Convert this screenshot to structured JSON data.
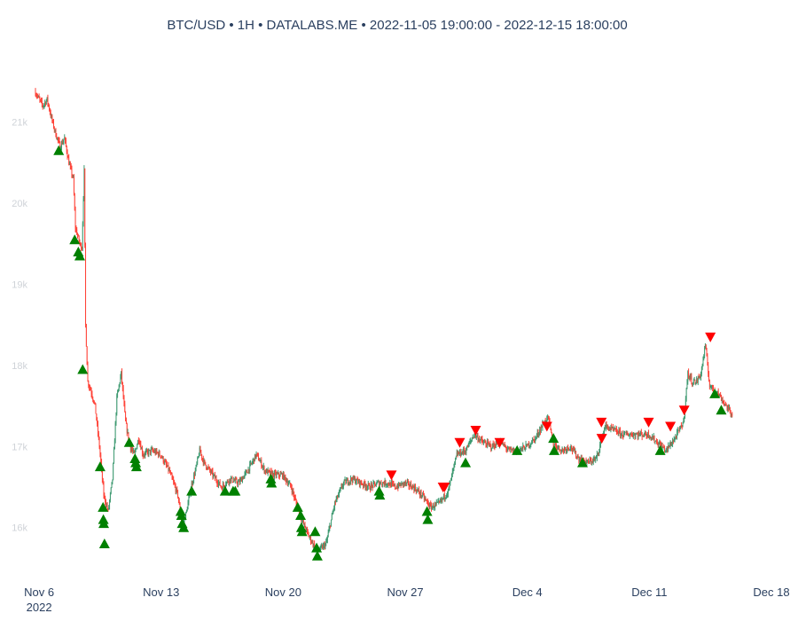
{
  "chart_data": {
    "type": "candlestick",
    "title": "BTC/USD • 1H • DATALABS.ME • 2022-11-05 19:00:00 - 2022-12-15 18:00:00",
    "xlabel": "",
    "ylabel": "",
    "xlim": [
      "2022-11-05 19:00:00",
      "2022-12-18 00:00:00"
    ],
    "ylim": [
      15450,
      21850
    ],
    "grid": false,
    "legend": "none",
    "x_ticks": [
      {
        "date": "2022-11-06",
        "label": "Nov 6",
        "sublabel": "2022"
      },
      {
        "date": "2022-11-13",
        "label": "Nov 13",
        "sublabel": ""
      },
      {
        "date": "2022-11-20",
        "label": "Nov 20",
        "sublabel": ""
      },
      {
        "date": "2022-11-27",
        "label": "Nov 27",
        "sublabel": ""
      },
      {
        "date": "2022-12-04",
        "label": "Dec 4",
        "sublabel": ""
      },
      {
        "date": "2022-12-11",
        "label": "Dec 11",
        "sublabel": ""
      },
      {
        "date": "2022-12-18",
        "label": "Dec 18",
        "sublabel": ""
      }
    ],
    "y_ticks": [
      {
        "value": 16000,
        "label": "16k"
      },
      {
        "value": 17000,
        "label": "17k"
      },
      {
        "value": 18000,
        "label": "18k"
      },
      {
        "value": 19000,
        "label": "19k"
      },
      {
        "value": 20000,
        "label": "20k"
      },
      {
        "value": 21000,
        "label": "21k"
      }
    ],
    "colors": {
      "up": "#3d9970",
      "down": "#ff4136",
      "buy_marker": "#008000",
      "sell_marker": "#ff0000"
    },
    "price_path": [
      [
        "2022-11-05 19:00",
        21380
      ],
      [
        "2022-11-06 00:00",
        21300
      ],
      [
        "2022-11-06 06:00",
        21200
      ],
      [
        "2022-11-06 12:00",
        21280
      ],
      [
        "2022-11-06 18:00",
        21050
      ],
      [
        "2022-11-07 00:00",
        20850
      ],
      [
        "2022-11-07 06:00",
        20700
      ],
      [
        "2022-11-07 12:00",
        20800
      ],
      [
        "2022-11-07 18:00",
        20500
      ],
      [
        "2022-11-08 00:00",
        20300
      ],
      [
        "2022-11-08 03:00",
        19700
      ],
      [
        "2022-11-08 06:00",
        19600
      ],
      [
        "2022-11-08 09:00",
        19500
      ],
      [
        "2022-11-08 12:00",
        19450
      ],
      [
        "2022-11-08 15:00",
        20400
      ],
      [
        "2022-11-08 17:00",
        18500
      ],
      [
        "2022-11-08 20:00",
        17800
      ],
      [
        "2022-11-09 00:00",
        17700
      ],
      [
        "2022-11-09 06:00",
        17500
      ],
      [
        "2022-11-09 12:00",
        17000
      ],
      [
        "2022-11-09 18:00",
        16400
      ],
      [
        "2022-11-10 00:00",
        16200
      ],
      [
        "2022-11-10 06:00",
        16600
      ],
      [
        "2022-11-10 12:00",
        17600
      ],
      [
        "2022-11-10 18:00",
        17900
      ],
      [
        "2022-11-11 00:00",
        17300
      ],
      [
        "2022-11-11 06:00",
        17000
      ],
      [
        "2022-11-11 12:00",
        16900
      ],
      [
        "2022-11-11 18:00",
        17100
      ],
      [
        "2022-11-12 00:00",
        16900
      ],
      [
        "2022-11-12 12:00",
        16950
      ],
      [
        "2022-11-13 00:00",
        16900
      ],
      [
        "2022-11-13 12:00",
        16700
      ],
      [
        "2022-11-14 00:00",
        16400
      ],
      [
        "2022-11-14 06:00",
        16000
      ],
      [
        "2022-11-14 12:00",
        16200
      ],
      [
        "2022-11-14 18:00",
        16500
      ],
      [
        "2022-11-15 00:00",
        16700
      ],
      [
        "2022-11-15 06:00",
        16950
      ],
      [
        "2022-11-15 12:00",
        16800
      ],
      [
        "2022-11-16 00:00",
        16650
      ],
      [
        "2022-11-16 12:00",
        16500
      ],
      [
        "2022-11-17 00:00",
        16600
      ],
      [
        "2022-11-17 12:00",
        16550
      ],
      [
        "2022-11-18 00:00",
        16700
      ],
      [
        "2022-11-18 12:00",
        16900
      ],
      [
        "2022-11-19 00:00",
        16700
      ],
      [
        "2022-11-19 12:00",
        16650
      ],
      [
        "2022-11-20 00:00",
        16650
      ],
      [
        "2022-11-20 12:00",
        16500
      ],
      [
        "2022-11-21 00:00",
        16150
      ],
      [
        "2022-11-21 12:00",
        15900
      ],
      [
        "2022-11-22 00:00",
        15700
      ],
      [
        "2022-11-22 12:00",
        15800
      ],
      [
        "2022-11-23 00:00",
        16300
      ],
      [
        "2022-11-23 12:00",
        16550
      ],
      [
        "2022-11-24 00:00",
        16600
      ],
      [
        "2022-11-24 12:00",
        16550
      ],
      [
        "2022-11-25 00:00",
        16500
      ],
      [
        "2022-11-25 12:00",
        16550
      ],
      [
        "2022-11-26 00:00",
        16550
      ],
      [
        "2022-11-26 12:00",
        16500
      ],
      [
        "2022-11-27 00:00",
        16550
      ],
      [
        "2022-11-27 12:00",
        16500
      ],
      [
        "2022-11-28 00:00",
        16400
      ],
      [
        "2022-11-28 12:00",
        16250
      ],
      [
        "2022-11-29 00:00",
        16300
      ],
      [
        "2022-11-29 12:00",
        16450
      ],
      [
        "2022-11-30 00:00",
        16900
      ],
      [
        "2022-11-30 12:00",
        16950
      ],
      [
        "2022-12-01 00:00",
        17150
      ],
      [
        "2022-12-01 12:00",
        17050
      ],
      [
        "2022-12-02 00:00",
        17000
      ],
      [
        "2022-12-02 12:00",
        17050
      ],
      [
        "2022-12-03 00:00",
        16950
      ],
      [
        "2022-12-03 12:00",
        16950
      ],
      [
        "2022-12-04 00:00",
        17000
      ],
      [
        "2022-12-04 12:00",
        17100
      ],
      [
        "2022-12-05 00:00",
        17300
      ],
      [
        "2022-12-05 06:00",
        17350
      ],
      [
        "2022-12-05 12:00",
        17050
      ],
      [
        "2022-12-06 00:00",
        16950
      ],
      [
        "2022-12-06 12:00",
        17000
      ],
      [
        "2022-12-07 00:00",
        16850
      ],
      [
        "2022-12-07 12:00",
        16800
      ],
      [
        "2022-12-08 00:00",
        16850
      ],
      [
        "2022-12-08 12:00",
        17250
      ],
      [
        "2022-12-09 00:00",
        17200
      ],
      [
        "2022-12-09 12:00",
        17150
      ],
      [
        "2022-12-10 00:00",
        17150
      ],
      [
        "2022-12-10 12:00",
        17150
      ],
      [
        "2022-12-11 00:00",
        17150
      ],
      [
        "2022-12-11 12:00",
        17050
      ],
      [
        "2022-12-12 00:00",
        16950
      ],
      [
        "2022-12-12 12:00",
        17100
      ],
      [
        "2022-12-13 00:00",
        17300
      ],
      [
        "2022-12-13 06:00",
        17900
      ],
      [
        "2022-12-13 12:00",
        17800
      ],
      [
        "2022-12-13 18:00",
        17800
      ],
      [
        "2022-12-14 00:00",
        17900
      ],
      [
        "2022-12-14 06:00",
        18250
      ],
      [
        "2022-12-14 12:00",
        17750
      ],
      [
        "2022-12-14 18:00",
        17700
      ],
      [
        "2022-12-15 00:00",
        17650
      ],
      [
        "2022-12-15 18:00",
        17400
      ]
    ],
    "buy_signals": [
      [
        "2022-11-07 03:00",
        20650
      ],
      [
        "2022-11-08 01:00",
        19550
      ],
      [
        "2022-11-08 06:00",
        19400
      ],
      [
        "2022-11-08 08:00",
        19350
      ],
      [
        "2022-11-08 12:00",
        17950
      ],
      [
        "2022-11-09 12:00",
        16750
      ],
      [
        "2022-11-09 16:00",
        16250
      ],
      [
        "2022-11-09 16:30",
        16100
      ],
      [
        "2022-11-09 17:00",
        16050
      ],
      [
        "2022-11-09 18:00",
        15800
      ],
      [
        "2022-11-11 04:00",
        17050
      ],
      [
        "2022-11-11 12:00",
        16850
      ],
      [
        "2022-11-11 13:00",
        16800
      ],
      [
        "2022-11-11 14:00",
        16750
      ],
      [
        "2022-11-14 03:00",
        16200
      ],
      [
        "2022-11-14 04:00",
        16150
      ],
      [
        "2022-11-14 05:00",
        16050
      ],
      [
        "2022-11-14 07:00",
        16000
      ],
      [
        "2022-11-14 18:00",
        16450
      ],
      [
        "2022-11-16 16:00",
        16450
      ],
      [
        "2022-11-17 03:00",
        16450
      ],
      [
        "2022-11-17 06:00",
        16450
      ],
      [
        "2022-11-19 07:00",
        16600
      ],
      [
        "2022-11-19 08:00",
        16550
      ],
      [
        "2022-11-20 20:00",
        16250
      ],
      [
        "2022-11-21 00:00",
        16150
      ],
      [
        "2022-11-21 01:00",
        16000
      ],
      [
        "2022-11-21 02:00",
        15950
      ],
      [
        "2022-11-21 20:00",
        15950
      ],
      [
        "2022-11-21 22:00",
        15750
      ],
      [
        "2022-11-21 23:00",
        15650
      ],
      [
        "2022-11-25 12:00",
        16450
      ],
      [
        "2022-11-25 13:00",
        16400
      ],
      [
        "2022-11-28 06:00",
        16200
      ],
      [
        "2022-11-28 07:00",
        16100
      ],
      [
        "2022-11-30 11:00",
        16800
      ],
      [
        "2022-12-03 10:00",
        16950
      ],
      [
        "2022-12-05 12:00",
        17100
      ],
      [
        "2022-12-05 13:00",
        16950
      ],
      [
        "2022-12-07 04:00",
        16800
      ],
      [
        "2022-12-11 15:00",
        16950
      ],
      [
        "2022-12-14 18:00",
        17650
      ],
      [
        "2022-12-15 03:00",
        17450
      ]
    ],
    "sell_signals": [
      [
        "2022-11-26 05:00",
        16650
      ],
      [
        "2022-11-29 04:00",
        16500
      ],
      [
        "2022-11-29 06:00",
        16500
      ],
      [
        "2022-11-30 03:00",
        17050
      ],
      [
        "2022-12-01 01:00",
        17200
      ],
      [
        "2022-12-02 10:00",
        17050
      ],
      [
        "2022-12-05 03:00",
        17250
      ],
      [
        "2022-12-08 06:00",
        17300
      ],
      [
        "2022-12-08 06:30",
        17100
      ],
      [
        "2022-12-10 23:00",
        17300
      ],
      [
        "2022-12-12 05:00",
        17250
      ],
      [
        "2022-12-13 00:00",
        17450
      ],
      [
        "2022-12-14 12:00",
        18350
      ]
    ]
  }
}
